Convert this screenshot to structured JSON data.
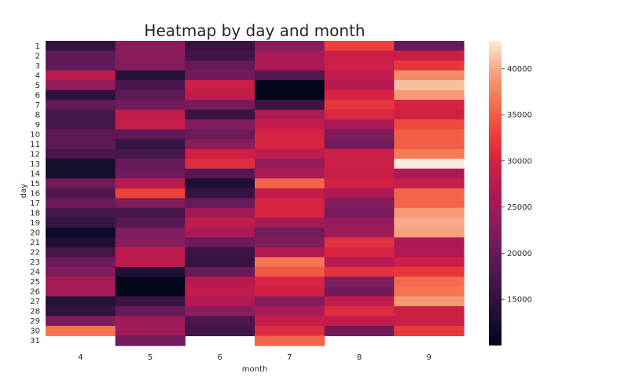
{
  "chart_data": {
    "type": "heatmap",
    "title": "Heatmap by day and month",
    "xlabel": "month",
    "ylabel": "day",
    "x_categories": [
      "4",
      "5",
      "6",
      "7",
      "8",
      "9"
    ],
    "y_categories": [
      "1",
      "2",
      "3",
      "4",
      "5",
      "6",
      "7",
      "8",
      "9",
      "10",
      "11",
      "12",
      "13",
      "14",
      "15",
      "16",
      "17",
      "18",
      "19",
      "20",
      "21",
      "22",
      "23",
      "24",
      "25",
      "26",
      "27",
      "28",
      "29",
      "30",
      "31"
    ],
    "color_scale": {
      "min": 10000,
      "max": 43000,
      "colormap": "rocket",
      "ticks": [
        15000,
        20000,
        25000,
        30000,
        35000,
        40000
      ],
      "tick_labels": [
        "15000",
        "20000",
        "25000",
        "30000",
        "35000",
        "40000"
      ]
    },
    "values": [
      [
        15500,
        23000,
        16000,
        23000,
        33000,
        20000
      ],
      [
        19000,
        23000,
        16500,
        26000,
        29000,
        29000
      ],
      [
        19500,
        22500,
        20000,
        26000,
        29000,
        32000
      ],
      [
        27500,
        14500,
        21000,
        18000,
        28000,
        38000
      ],
      [
        24000,
        17500,
        29000,
        10000,
        27000,
        41000
      ],
      [
        14500,
        19000,
        28000,
        10000,
        30000,
        39000
      ],
      [
        19500,
        21000,
        21500,
        16000,
        32000,
        30000
      ],
      [
        17000,
        28000,
        16000,
        26000,
        30500,
        29500
      ],
      [
        17000,
        28500,
        22000,
        28000,
        26000,
        33500
      ],
      [
        19000,
        19000,
        20500,
        30000,
        22000,
        35000
      ],
      [
        19000,
        15500,
        23000,
        30000,
        21000,
        35000
      ],
      [
        17500,
        17000,
        29500,
        27500,
        29000,
        37000
      ],
      [
        12500,
        20000,
        31000,
        24000,
        29000,
        43000
      ],
      [
        12500,
        21000,
        18500,
        26000,
        28500,
        26000
      ],
      [
        21000,
        27000,
        13500,
        35500,
        29500,
        28500
      ],
      [
        18000,
        33000,
        15500,
        28000,
        26000,
        35500
      ],
      [
        20500,
        22000,
        20000,
        30000,
        22500,
        35500
      ],
      [
        17000,
        17000,
        25000,
        30000,
        21500,
        39000
      ],
      [
        15500,
        18500,
        28000,
        25000,
        24000,
        40000
      ],
      [
        11500,
        22000,
        26000,
        21000,
        25000,
        39500
      ],
      [
        13500,
        23000,
        20500,
        22000,
        31500,
        26000
      ],
      [
        17000,
        27500,
        16000,
        26500,
        30000,
        26500
      ],
      [
        20500,
        27500,
        15500,
        36500,
        27000,
        29000
      ],
      [
        22000,
        13500,
        20000,
        34500,
        31500,
        32000
      ],
      [
        25500,
        10500,
        27000,
        30000,
        22000,
        36000
      ],
      [
        25500,
        10500,
        28000,
        29500,
        21000,
        36500
      ],
      [
        14000,
        16000,
        26500,
        22500,
        28000,
        39000
      ],
      [
        15000,
        20000,
        23000,
        26000,
        31000,
        29000
      ],
      [
        22000,
        25000,
        17500,
        28500,
        28000,
        29000
      ],
      [
        36500,
        25000,
        16500,
        31000,
        21000,
        32000
      ],
      [
        null,
        21000,
        null,
        35500,
        null,
        null
      ]
    ]
  }
}
